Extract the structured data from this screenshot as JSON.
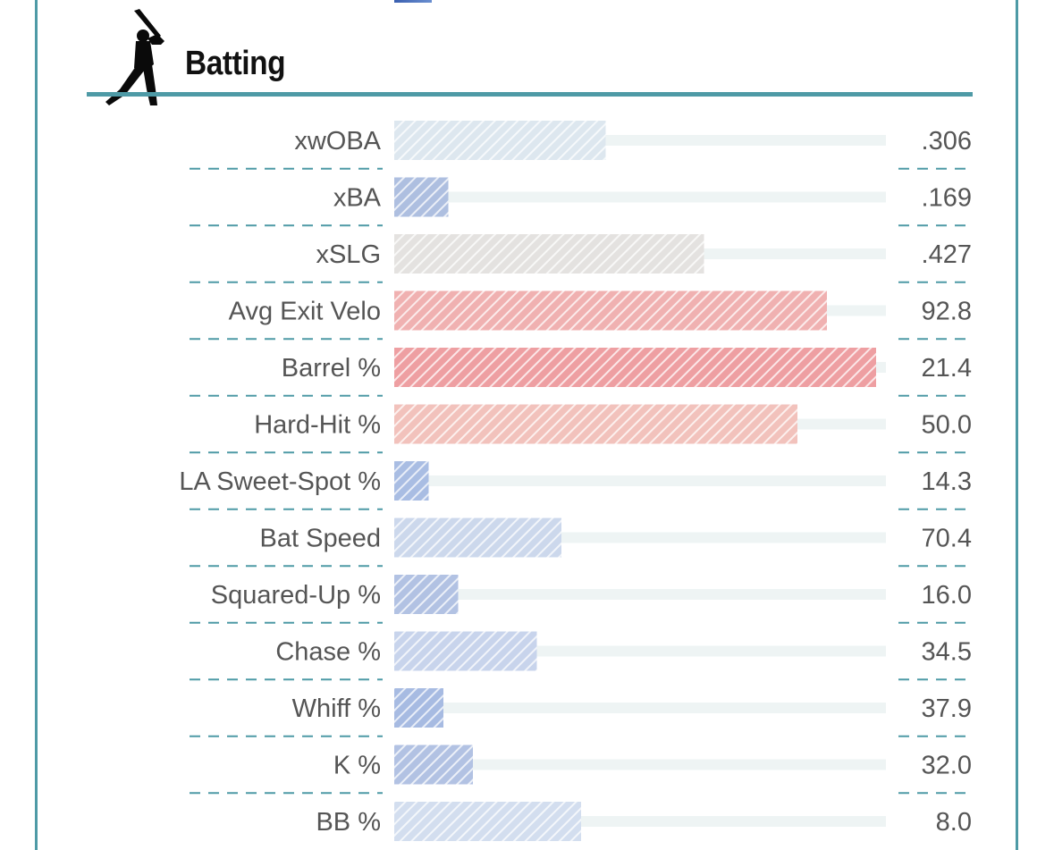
{
  "section": {
    "title": "Batting",
    "icon": "batter-silhouette-icon"
  },
  "colors": {
    "frame": "#4e9aa6",
    "track": "#eef4f4",
    "divider": "#4e9aa6"
  },
  "chart_data": {
    "type": "bar",
    "orientation": "horizontal",
    "value_type": "percentile",
    "xlim": [
      0,
      100
    ],
    "categories": [
      "xwOBA",
      "xBA",
      "xSLG",
      "Avg Exit Velo",
      "Barrel %",
      "Hard-Hit %",
      "LA Sweet-Spot %",
      "Bat Speed",
      "Squared-Up %",
      "Chase %",
      "Whiff %",
      "K %",
      "BB %"
    ],
    "display_values": [
      ".306",
      ".169",
      ".427",
      "92.8",
      "21.4",
      "50.0",
      "14.3",
      "70.4",
      "16.0",
      "34.5",
      "37.9",
      "32.0",
      "8.0"
    ],
    "percentiles": [
      43,
      11,
      63,
      88,
      98,
      82,
      7,
      34,
      13,
      29,
      10,
      16,
      38
    ],
    "bar_colors": [
      "#dde7ef",
      "#aebfe0",
      "#e4e2e0",
      "#f0b1b1",
      "#ee9fa2",
      "#f2c2bc",
      "#a9bde3",
      "#ccd8ec",
      "#b2c2e3",
      "#c8d4ec",
      "#a7bbe2",
      "#b2c2e3",
      "#d3deef"
    ]
  }
}
